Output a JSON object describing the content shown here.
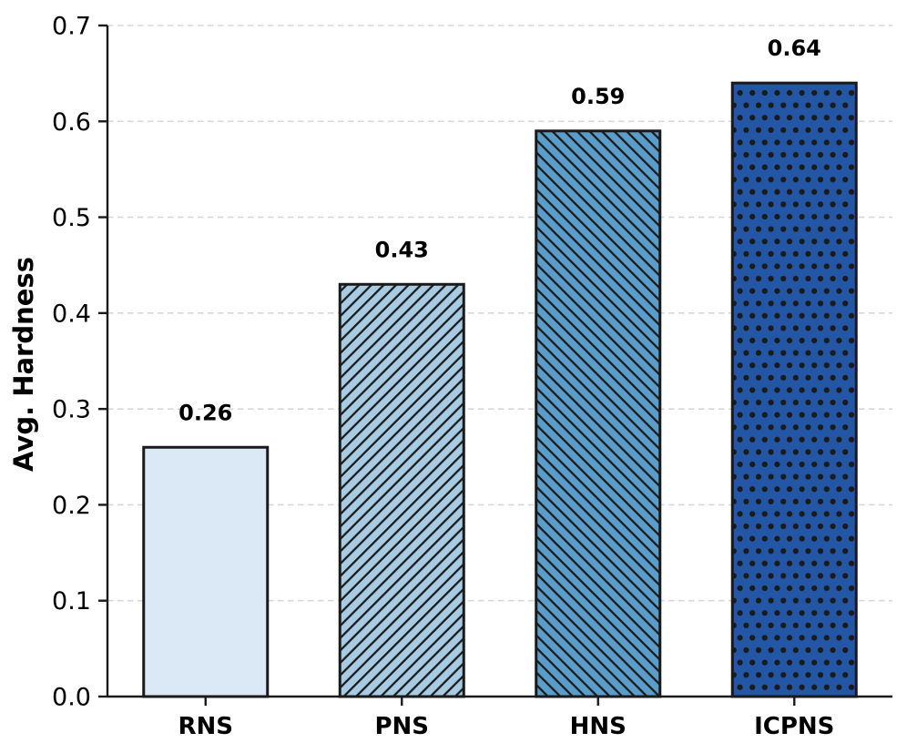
{
  "figure": {
    "background": "#ffffff"
  },
  "chart_data": {
    "type": "bar",
    "title": "",
    "xlabel": "",
    "ylabel": "Avg. Hardness",
    "categories": [
      "RNS",
      "PNS",
      "HNS",
      "ICPNS"
    ],
    "values": [
      0.26,
      0.43,
      0.59,
      0.64
    ],
    "value_labels": [
      "0.26",
      "0.43",
      "0.59",
      "0.64"
    ],
    "ylim": [
      0.0,
      0.7
    ],
    "yticks": [
      0.0,
      0.1,
      0.2,
      0.3,
      0.4,
      0.5,
      0.6,
      0.7
    ],
    "ytick_labels": [
      "0.0",
      "0.1",
      "0.2",
      "0.3",
      "0.4",
      "0.5",
      "0.6",
      "0.7"
    ],
    "grid": "horizontal-dashed",
    "legend": "none",
    "bar_styles": [
      {
        "category": "RNS",
        "fill": "#dbe9f6",
        "hatch": "none"
      },
      {
        "category": "PNS",
        "fill": "#a6cbe3",
        "hatch": "/"
      },
      {
        "category": "HNS",
        "fill": "#5a9dca",
        "hatch": "\\"
      },
      {
        "category": "ICPNS",
        "fill": "#2356a5",
        "hatch": "."
      }
    ],
    "colors": {
      "bar_edge": "#1a1a1a",
      "hatch": "#1a1a1a",
      "grid": "#d8d8d8",
      "spine": "#1a1a1a",
      "text": "#000000"
    }
  }
}
